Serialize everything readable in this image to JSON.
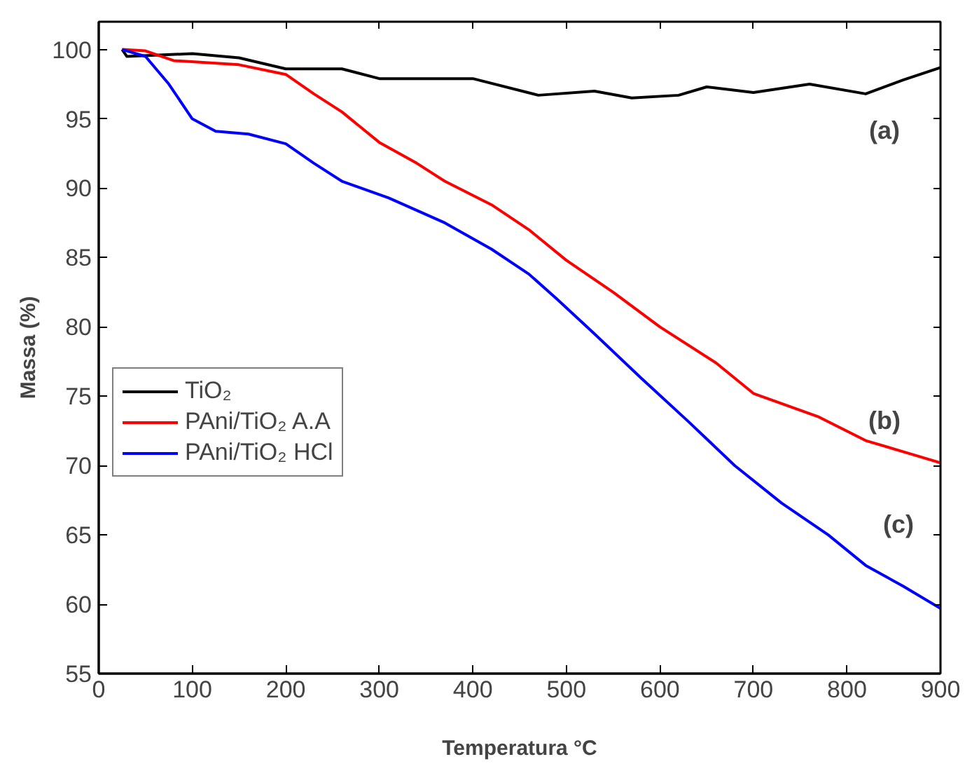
{
  "chart_data": {
    "type": "line",
    "xlabel": "Temperatura °C",
    "ylabel": "Massa (%)",
    "xlim": [
      0,
      900
    ],
    "ylim": [
      55,
      102
    ],
    "xticks": [
      0,
      100,
      200,
      300,
      400,
      500,
      600,
      700,
      800,
      900
    ],
    "yticks": [
      55,
      60,
      65,
      70,
      75,
      80,
      85,
      90,
      95,
      100
    ],
    "grid": false,
    "legend": "left",
    "marker": "none",
    "line_style": "solid",
    "series": [
      {
        "name": "TiO₂",
        "color": "#000000",
        "x": [
          25,
          30,
          100,
          150,
          200,
          260,
          300,
          400,
          470,
          530,
          570,
          620,
          650,
          700,
          760,
          820,
          860,
          900
        ],
        "values": [
          100,
          99.5,
          99.7,
          99.4,
          98.6,
          98.6,
          97.9,
          97.9,
          96.7,
          97,
          96.5,
          96.7,
          97.3,
          96.9,
          97.5,
          96.8,
          97.8,
          98.7
        ]
      },
      {
        "name": "PAni/TiO₂ A.A",
        "color": "#ff0000",
        "x": [
          25,
          50,
          80,
          150,
          200,
          230,
          260,
          300,
          340,
          370,
          420,
          460,
          500,
          550,
          600,
          660,
          700,
          770,
          820,
          870,
          900
        ],
        "values": [
          100,
          99.9,
          99.2,
          98.9,
          98.2,
          96.8,
          95.5,
          93.3,
          91.8,
          90.5,
          88.8,
          87,
          84.8,
          82.5,
          80,
          77.4,
          75.2,
          73.5,
          71.8,
          70.8,
          70.2
        ]
      },
      {
        "name": "PAni/TiO₂ HCl",
        "color": "#0000ff",
        "x": [
          25,
          50,
          75,
          100,
          125,
          160,
          200,
          230,
          260,
          310,
          370,
          420,
          460,
          490,
          530,
          580,
          630,
          680,
          730,
          780,
          820,
          860,
          900
        ],
        "values": [
          100,
          99.5,
          97.5,
          95,
          94.1,
          93.9,
          93.2,
          91.8,
          90.5,
          89.3,
          87.5,
          85.6,
          83.8,
          82,
          79.5,
          76.3,
          73.2,
          70,
          67.3,
          65,
          62.8,
          61.3,
          59.7
        ]
      }
    ],
    "annotations": [
      "(a)",
      "(b)",
      "(c)"
    ]
  }
}
